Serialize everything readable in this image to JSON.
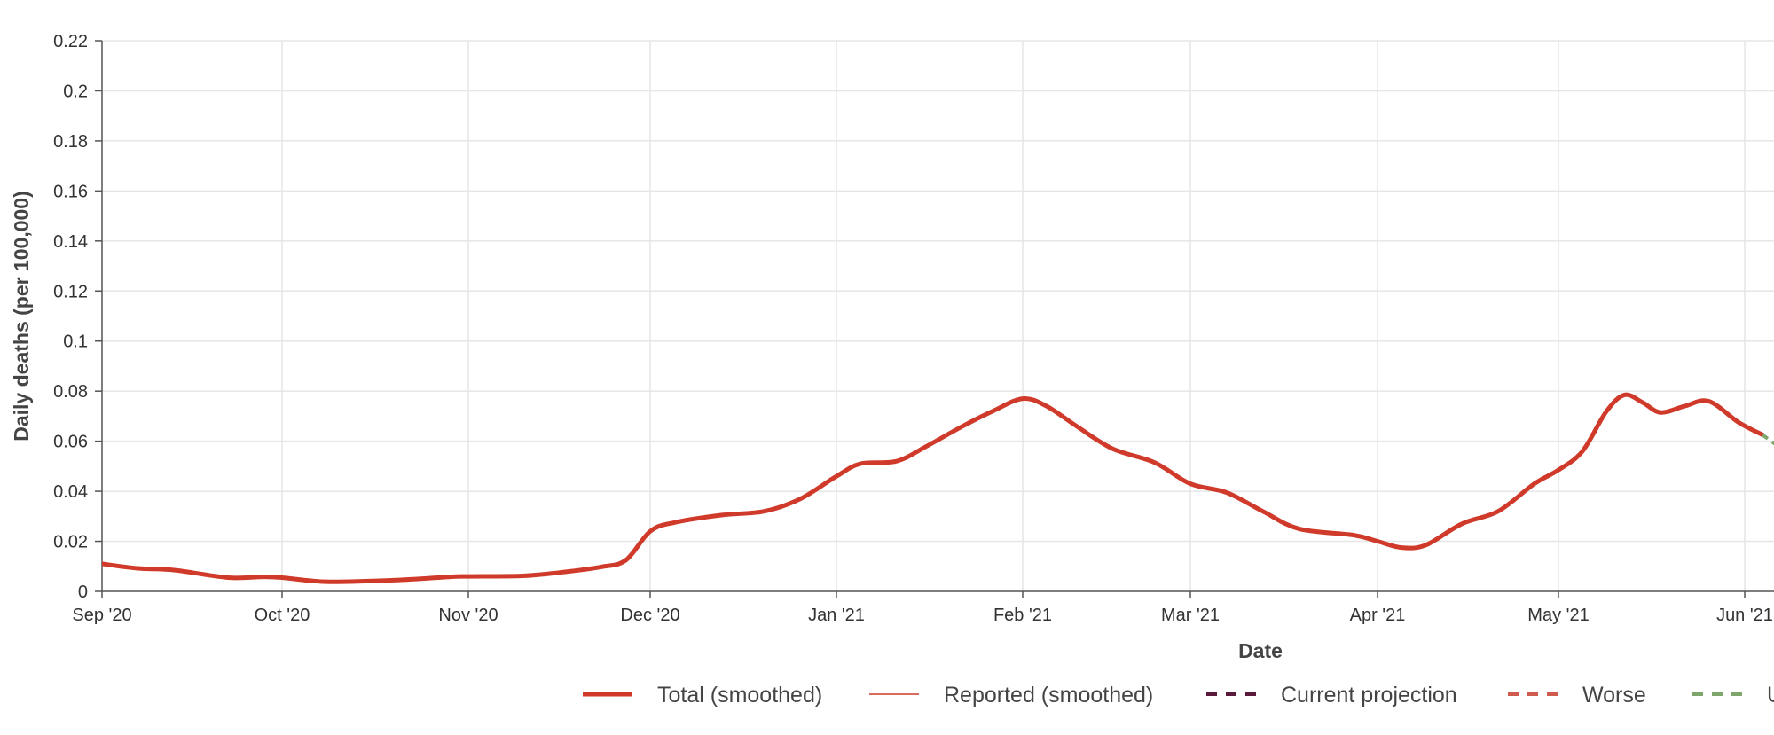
{
  "chart_data": {
    "type": "line",
    "xlabel": "Date",
    "ylabel": "Daily deaths (per 100,000)",
    "ylim": [
      0,
      0.22
    ],
    "y_ticks": [
      0,
      0.02,
      0.04,
      0.06,
      0.08,
      0.1,
      0.12,
      0.14,
      0.16,
      0.18,
      0.2,
      0.22
    ],
    "y_tick_labels": [
      "0",
      "0.02",
      "0.04",
      "0.06",
      "0.08",
      "0.1",
      "0.12",
      "0.14",
      "0.16",
      "0.18",
      "0.2",
      "0.22"
    ],
    "x_range": [
      "2020-09-01",
      "2021-06-01"
    ],
    "x_ticks": [
      "2020-09-01",
      "2020-10-01",
      "2020-11-01",
      "2020-12-01",
      "2021-01-01",
      "2021-02-01",
      "2021-03-01",
      "2021-04-01",
      "2021-05-01",
      "2021-06-01"
    ],
    "x_tick_labels": [
      "Sep '20",
      "Oct '20",
      "Nov '20",
      "Dec '20",
      "Jan '21",
      "Feb '21",
      "Mar '21",
      "Apr '21",
      "May '21",
      "Jun '21"
    ],
    "grid": true,
    "legend_position": "bottom",
    "legend": [
      {
        "label": "Total (smoothed)",
        "style": "thick-solid",
        "color": "#d03a2a"
      },
      {
        "label": "Reported (smoothed)",
        "style": "thin-solid",
        "color": "#d03a2a"
      },
      {
        "label": "Current projection",
        "style": "dashed",
        "color": "#5a1a3c"
      },
      {
        "label": "Worse",
        "style": "dashed",
        "color": "#cf5a4e"
      },
      {
        "label": "U",
        "style": "dashed",
        "color": "#7fa66a"
      }
    ],
    "series": [
      {
        "name": "Total (smoothed)",
        "color": "#d03a2a",
        "points": [
          [
            "2020-09-01",
            0.011
          ],
          [
            "2020-09-07",
            0.0092
          ],
          [
            "2020-09-13",
            0.0085
          ],
          [
            "2020-09-22",
            0.0055
          ],
          [
            "2020-09-28",
            0.0058
          ],
          [
            "2020-10-01",
            0.0055
          ],
          [
            "2020-10-06",
            0.0042
          ],
          [
            "2020-10-10",
            0.0038
          ],
          [
            "2020-10-20",
            0.0045
          ],
          [
            "2020-10-29",
            0.0058
          ],
          [
            "2020-11-01",
            0.006
          ],
          [
            "2020-11-10",
            0.0062
          ],
          [
            "2020-11-16",
            0.0075
          ],
          [
            "2020-11-23",
            0.0098
          ],
          [
            "2020-11-27",
            0.0125
          ],
          [
            "2020-12-01",
            0.024
          ],
          [
            "2020-12-05",
            0.0275
          ],
          [
            "2020-12-13",
            0.0305
          ],
          [
            "2020-12-20",
            0.032
          ],
          [
            "2020-12-26",
            0.037
          ],
          [
            "2021-01-01",
            0.046
          ],
          [
            "2021-01-05",
            0.051
          ],
          [
            "2021-01-11",
            0.052
          ],
          [
            "2021-01-16",
            0.058
          ],
          [
            "2021-01-22",
            0.066
          ],
          [
            "2021-01-27",
            0.072
          ],
          [
            "2021-02-01",
            0.077
          ],
          [
            "2021-02-05",
            0.074
          ],
          [
            "2021-02-10",
            0.066
          ],
          [
            "2021-02-16",
            0.057
          ],
          [
            "2021-02-23",
            0.0515
          ],
          [
            "2021-03-01",
            0.043
          ],
          [
            "2021-03-07",
            0.0395
          ],
          [
            "2021-03-13",
            0.032
          ],
          [
            "2021-03-19",
            0.025
          ],
          [
            "2021-03-28",
            0.0225
          ],
          [
            "2021-04-01",
            0.02
          ],
          [
            "2021-04-05",
            0.0175
          ],
          [
            "2021-04-09",
            0.0185
          ],
          [
            "2021-04-15",
            0.027
          ],
          [
            "2021-04-21",
            0.032
          ],
          [
            "2021-04-27",
            0.043
          ],
          [
            "2021-05-01",
            0.0485
          ],
          [
            "2021-05-05",
            0.056
          ],
          [
            "2021-05-09",
            0.072
          ],
          [
            "2021-05-12",
            0.0785
          ],
          [
            "2021-05-15",
            0.0755
          ],
          [
            "2021-05-18",
            0.0715
          ],
          [
            "2021-05-22",
            0.074
          ],
          [
            "2021-05-26",
            0.076
          ],
          [
            "2021-05-31",
            0.0675
          ],
          [
            "2021-06-04",
            0.0625
          ]
        ]
      },
      {
        "name": "U",
        "color": "#7fa66a",
        "dashed": true,
        "points": [
          [
            "2021-06-04",
            0.0625
          ],
          [
            "2021-06-06",
            0.059
          ]
        ]
      }
    ]
  }
}
